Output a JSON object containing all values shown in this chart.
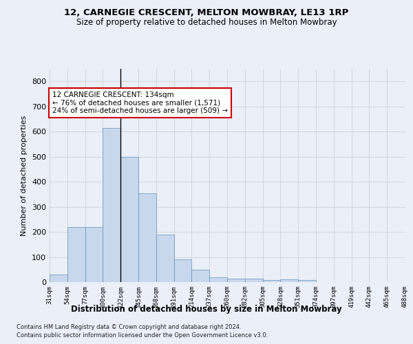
{
  "title1": "12, CARNEGIE CRESCENT, MELTON MOWBRAY, LE13 1RP",
  "title2": "Size of property relative to detached houses in Melton Mowbray",
  "xlabel": "Distribution of detached houses by size in Melton Mowbray",
  "ylabel": "Number of detached properties",
  "bar_values": [
    30,
    220,
    220,
    615,
    500,
    355,
    190,
    90,
    50,
    20,
    15,
    15,
    8,
    10,
    7,
    0,
    0,
    0,
    0,
    0
  ],
  "categories": [
    "31sqm",
    "54sqm",
    "77sqm",
    "100sqm",
    "122sqm",
    "145sqm",
    "168sqm",
    "191sqm",
    "214sqm",
    "237sqm",
    "260sqm",
    "282sqm",
    "305sqm",
    "328sqm",
    "351sqm",
    "374sqm",
    "397sqm",
    "419sqm",
    "442sqm",
    "465sqm",
    "488sqm"
  ],
  "bar_color": "#c8d8ec",
  "bar_edge_color": "#6090bb",
  "annotation_line1": "12 CARNEGIE CRESCENT: 134sqm",
  "annotation_line2": "← 76% of detached houses are smaller (1,571)",
  "annotation_line3": "24% of semi-detached houses are larger (509) →",
  "annotation_box_color": "#ffffff",
  "annotation_box_edge": "#cc0000",
  "vline_color": "#000000",
  "ylim": [
    0,
    850
  ],
  "yticks": [
    0,
    100,
    200,
    300,
    400,
    500,
    600,
    700,
    800
  ],
  "grid_color": "#c8ccd8",
  "bg_color": "#eaeff8",
  "footer1": "Contains HM Land Registry data © Crown copyright and database right 2024.",
  "footer2": "Contains public sector information licensed under the Open Government Licence v3.0."
}
